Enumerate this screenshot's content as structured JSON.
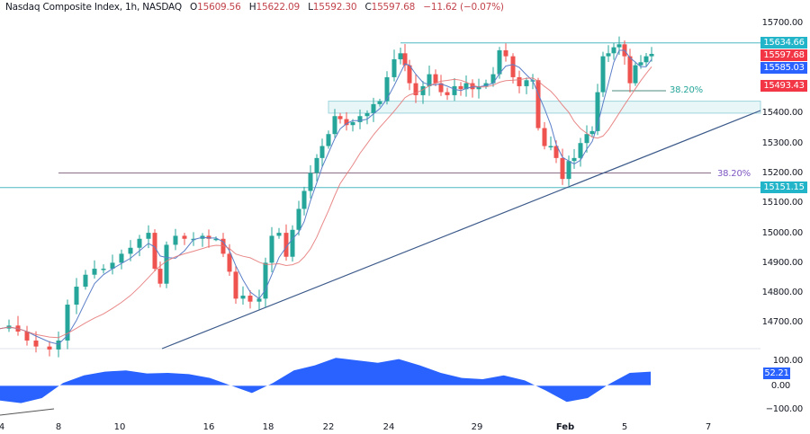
{
  "header": {
    "symbol": "Nasdaq Composite Index, 1h, NASDAQ",
    "open_label": "O",
    "open": "15609.56",
    "high_label": "H",
    "high": "15622.09",
    "low_label": "L",
    "low": "15592.30",
    "close_label": "C",
    "close": "15597.68",
    "change": "−11.62 (−0.07%)"
  },
  "price_axis": {
    "ticks": [
      "15700.00",
      "15400.00",
      "15300.00",
      "15200.00",
      "15100.00",
      "15000.00",
      "14900.00",
      "14800.00",
      "14700.00"
    ],
    "tags": [
      {
        "value": "15634.66",
        "color": "#22b5c9"
      },
      {
        "value": "15597.68",
        "color": "#f23645"
      },
      {
        "value": "15585.03",
        "color": "#2962ff"
      },
      {
        "value": "15493.43",
        "color": "#f23645"
      },
      {
        "value": "15151.15",
        "color": "#22b5c9"
      }
    ]
  },
  "oscillator_axis": {
    "ticks": [
      "100.00",
      "0.00",
      "−100.00"
    ],
    "current": "52.21",
    "current_color": "#2962ff"
  },
  "annotations": {
    "fib_upper": "38.20%",
    "fib_lower": "38.20%"
  },
  "time_axis": [
    "4",
    "8",
    "10",
    "16",
    "18",
    "22",
    "24",
    "29",
    "Feb",
    "5",
    "7"
  ],
  "chart_data": {
    "type": "candlestick",
    "title": "Nasdaq Composite Index, 1h, NASDAQ",
    "xlabel": "",
    "ylabel": "",
    "x_ticks": [
      "4",
      "8",
      "10",
      "16",
      "18",
      "22",
      "24",
      "29",
      "Feb",
      "5",
      "7"
    ],
    "ylim": [
      14600,
      15750
    ],
    "y_ticks": [
      14700,
      14800,
      14900,
      15000,
      15100,
      15200,
      15300,
      15400,
      15500,
      15600,
      15700
    ],
    "last_ohlc": {
      "open": 15609.56,
      "high": 15622.09,
      "low": 15592.3,
      "close": 15597.68,
      "change": -11.62,
      "change_pct": -0.07
    },
    "price_levels": {
      "resistance": 15634.66,
      "support": 15151.15,
      "ma_fast": 15585.03,
      "ma_slow": 15493.43,
      "fib_38_2_upper": 15465,
      "fib_38_2_lower": 15200,
      "support_zone": [
        15400,
        15440
      ]
    },
    "trendline": {
      "from": {
        "x": "8",
        "y": 14620
      },
      "to": {
        "x": "7",
        "y": 15400
      }
    },
    "oscillator": {
      "current": 52.21,
      "ylim": [
        -120,
        120
      ],
      "approx_values": [
        -60,
        -70,
        -50,
        10,
        40,
        55,
        60,
        48,
        50,
        45,
        30,
        0,
        -30,
        10,
        60,
        80,
        110,
        100,
        90,
        105,
        80,
        50,
        30,
        25,
        40,
        20,
        -20,
        -65,
        -50,
        5,
        50,
        55
      ]
    },
    "legend": []
  }
}
